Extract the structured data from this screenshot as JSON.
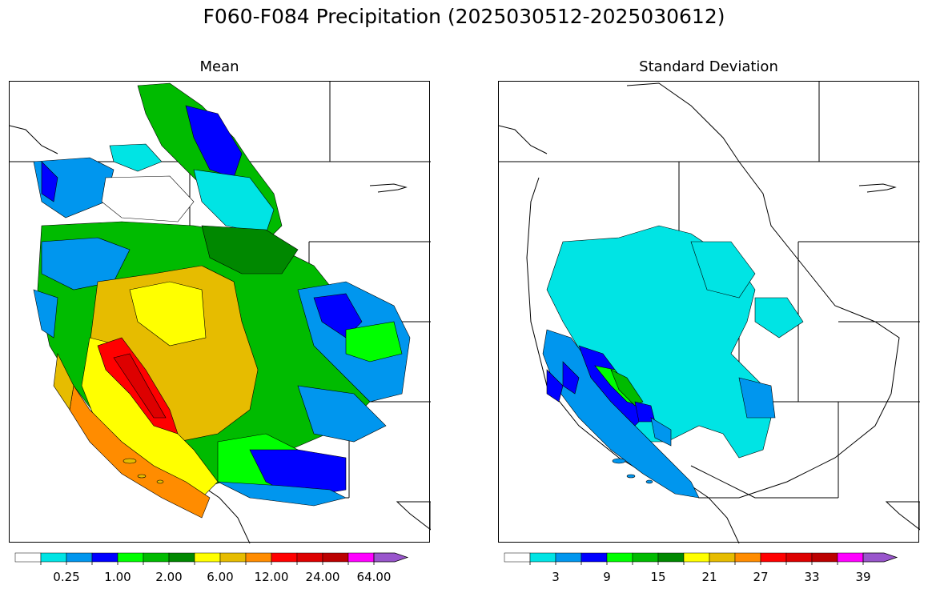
{
  "title": "F060-F084 Precipitation (2025030512-2025030612)",
  "panels": [
    {
      "id": "mean",
      "title": "Mean",
      "colorbar": {
        "colors": [
          "#ffffff",
          "#00e4e4",
          "#0096ee",
          "#0000ff",
          "#00ff00",
          "#00bb00",
          "#008800",
          "#ffff00",
          "#e6bc00",
          "#ff8c00",
          "#ff0000",
          "#dd0000",
          "#bb0000",
          "#ff00ff",
          "#9955cc"
        ],
        "tick_labels": [
          "0.25",
          "1.00",
          "2.00",
          "6.00",
          "12.00",
          "24.00",
          "64.00"
        ]
      }
    },
    {
      "id": "stddev",
      "title": "Standard Deviation",
      "colorbar": {
        "colors": [
          "#ffffff",
          "#00e4e4",
          "#0096ee",
          "#0000ff",
          "#00ff00",
          "#00bb00",
          "#008800",
          "#ffff00",
          "#e6bc00",
          "#ff8c00",
          "#ff0000",
          "#dd0000",
          "#bb0000",
          "#ff00ff",
          "#9955cc"
        ],
        "tick_labels": [
          "3",
          "9",
          "15",
          "21",
          "27",
          "33",
          "39"
        ]
      }
    }
  ]
}
